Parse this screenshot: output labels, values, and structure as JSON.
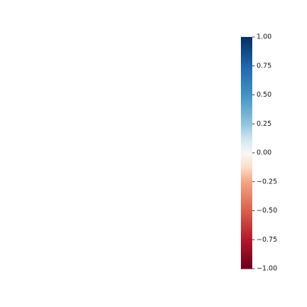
{
  "chart_data": {
    "type": "heatmap",
    "title": "",
    "xlabel": "",
    "ylabel": "",
    "values": [],
    "colorbar": {
      "colormap": "RdBu",
      "range": [
        -1.0,
        1.0
      ],
      "ticks": [
        1.0,
        0.75,
        0.5,
        0.25,
        0.0,
        -0.25,
        -0.5,
        -0.75,
        -1.0
      ],
      "tick_labels": [
        "1.00",
        "0.75",
        "0.50",
        "0.25",
        "0.00",
        "−0.25",
        "−0.50",
        "−0.75",
        "−1.00"
      ],
      "color_stops": [
        {
          "value": -1.0,
          "color": "#67001f"
        },
        {
          "value": -0.75,
          "color": "#b2182b"
        },
        {
          "value": -0.5,
          "color": "#d6604d"
        },
        {
          "value": -0.25,
          "color": "#f4a582"
        },
        {
          "value": -0.125,
          "color": "#fddbc7"
        },
        {
          "value": 0.0,
          "color": "#f7f7f7"
        },
        {
          "value": 0.125,
          "color": "#d1e5f0"
        },
        {
          "value": 0.25,
          "color": "#92c5de"
        },
        {
          "value": 0.5,
          "color": "#4393c3"
        },
        {
          "value": 0.75,
          "color": "#2166ac"
        },
        {
          "value": 1.0,
          "color": "#053061"
        }
      ]
    }
  }
}
